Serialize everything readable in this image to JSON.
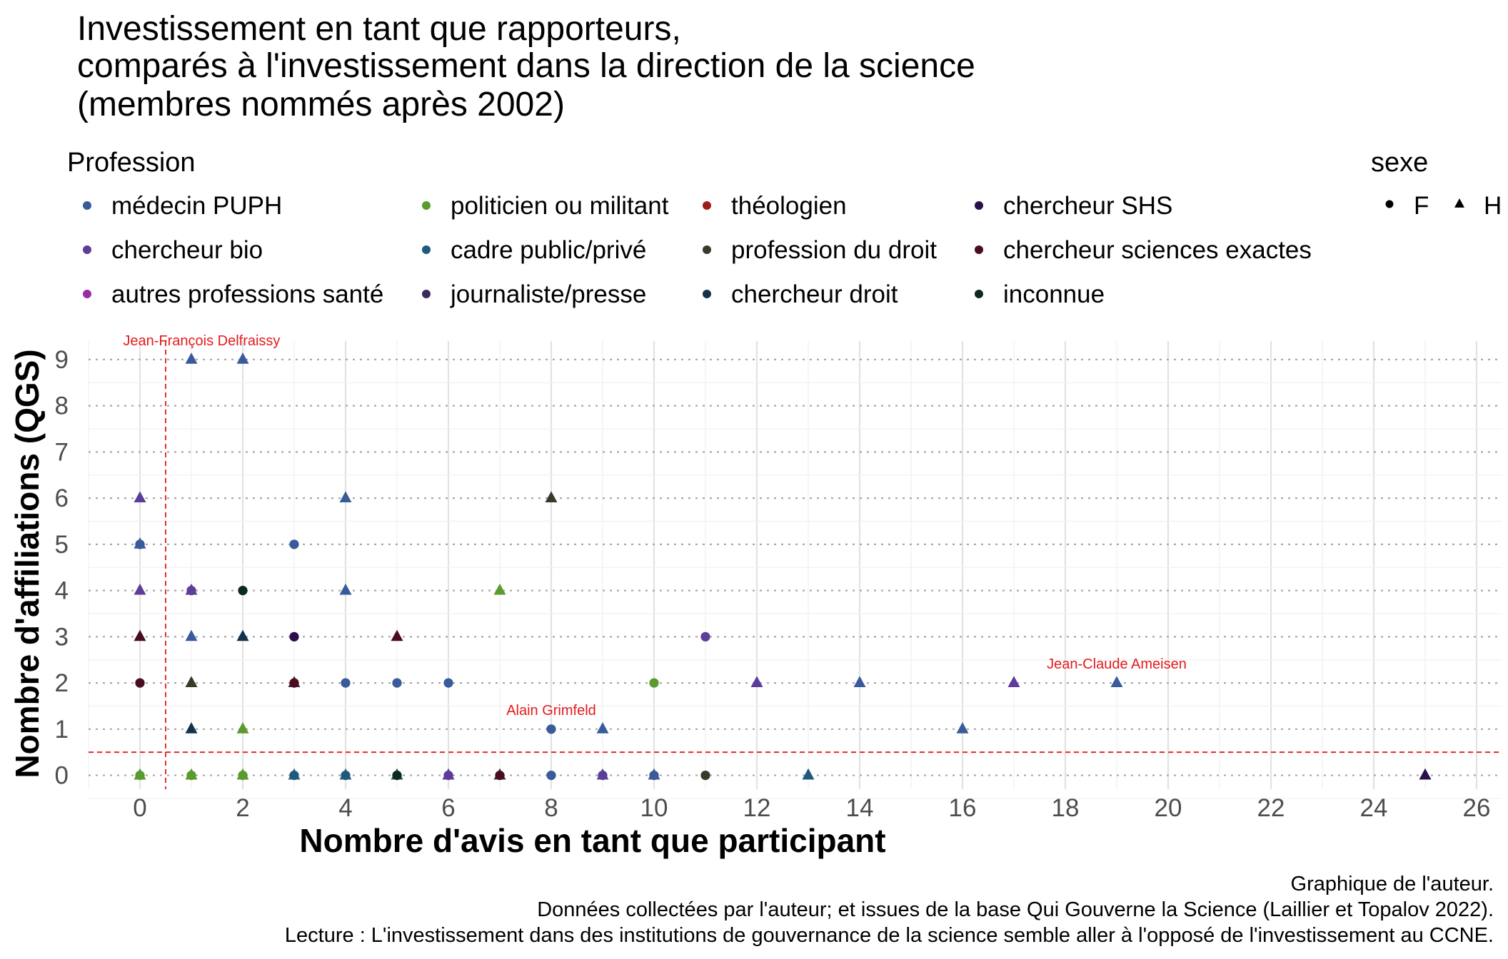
{
  "chart_data": {
    "type": "scatter",
    "title_lines": [
      "Investissement en tant que rapporteurs,",
      "comparés à l'investissement dans la direction de la science",
      "(membres nommés après 2002)"
    ],
    "xlabel": "Nombre d'avis en tant que participant",
    "ylabel": "Nombre d'affiliations (QGS)",
    "xlim": [
      -1,
      26.5
    ],
    "ylim": [
      -0.3,
      9.4
    ],
    "x_ticks": [
      0,
      2,
      4,
      6,
      8,
      10,
      12,
      14,
      16,
      18,
      20,
      22,
      24,
      26
    ],
    "y_ticks": [
      0,
      1,
      2,
      3,
      4,
      5,
      6,
      7,
      8,
      9
    ],
    "grid": true,
    "legend_position": "top",
    "reference_lines": {
      "vertical_x": 0.5,
      "horizontal_y": 0.5,
      "color": "#e41a1c"
    },
    "legend_profession": {
      "title": "Profession",
      "items": [
        {
          "label": "médecin PUPH",
          "color": "#3a5b9a"
        },
        {
          "label": "chercheur bio",
          "color": "#5e3c99"
        },
        {
          "label": "autres professions santé",
          "color": "#9b2aa8"
        },
        {
          "label": "politicien ou militant",
          "color": "#5a9a2e"
        },
        {
          "label": "cadre public/privé",
          "color": "#1e5a7a"
        },
        {
          "label": "journaliste/presse",
          "color": "#3b2a5a"
        },
        {
          "label": "théologien",
          "color": "#9e1c1c"
        },
        {
          "label": "profession du droit",
          "color": "#3a3a2a"
        },
        {
          "label": "chercheur droit",
          "color": "#13334a"
        },
        {
          "label": "chercheur SHS",
          "color": "#2a0f4a"
        },
        {
          "label": "chercheur sciences exactes",
          "color": "#4a0d1e"
        },
        {
          "label": "inconnue",
          "color": "#0d2a1e"
        }
      ]
    },
    "legend_sexe": {
      "title": "sexe",
      "items": [
        {
          "label": "F",
          "shape": "circle"
        },
        {
          "label": "H",
          "shape": "triangle"
        }
      ]
    },
    "annotations": [
      {
        "text": "Jean-François Delfraissy",
        "x": 1.2,
        "y": 9
      },
      {
        "text": "Alain Grimfeld",
        "x": 8.0,
        "y": 1
      },
      {
        "text": "Jean-Claude Ameisen",
        "x": 19.0,
        "y": 2
      }
    ],
    "points": [
      {
        "x": 1,
        "y": 9,
        "profession": "médecin PUPH",
        "sexe": "H"
      },
      {
        "x": 2,
        "y": 9,
        "profession": "médecin PUPH",
        "sexe": "H"
      },
      {
        "x": 0,
        "y": 6,
        "profession": "chercheur bio",
        "sexe": "H"
      },
      {
        "x": 4,
        "y": 6,
        "profession": "médecin PUPH",
        "sexe": "H"
      },
      {
        "x": 8,
        "y": 6,
        "profession": "profession du droit",
        "sexe": "H"
      },
      {
        "x": 0,
        "y": 5,
        "profession": "médecin PUPH",
        "sexe": "H"
      },
      {
        "x": 0,
        "y": 5,
        "profession": "médecin PUPH",
        "sexe": "F"
      },
      {
        "x": 3,
        "y": 5,
        "profession": "médecin PUPH",
        "sexe": "F"
      },
      {
        "x": 0,
        "y": 4,
        "profession": "chercheur bio",
        "sexe": "H"
      },
      {
        "x": 1,
        "y": 4,
        "profession": "chercheur bio",
        "sexe": "H"
      },
      {
        "x": 1,
        "y": 4,
        "profession": "chercheur bio",
        "sexe": "F"
      },
      {
        "x": 2,
        "y": 4,
        "profession": "inconnue",
        "sexe": "F"
      },
      {
        "x": 4,
        "y": 4,
        "profession": "médecin PUPH",
        "sexe": "H"
      },
      {
        "x": 7,
        "y": 4,
        "profession": "politicien ou militant",
        "sexe": "H"
      },
      {
        "x": 0,
        "y": 3,
        "profession": "chercheur sciences exactes",
        "sexe": "H"
      },
      {
        "x": 1,
        "y": 3,
        "profession": "médecin PUPH",
        "sexe": "H"
      },
      {
        "x": 2,
        "y": 3,
        "profession": "chercheur droit",
        "sexe": "H"
      },
      {
        "x": 3,
        "y": 3,
        "profession": "chercheur SHS",
        "sexe": "F"
      },
      {
        "x": 5,
        "y": 3,
        "profession": "chercheur sciences exactes",
        "sexe": "H"
      },
      {
        "x": 11,
        "y": 3,
        "profession": "chercheur bio",
        "sexe": "F"
      },
      {
        "x": 0,
        "y": 2,
        "profession": "chercheur sciences exactes",
        "sexe": "F"
      },
      {
        "x": 1,
        "y": 2,
        "profession": "profession du droit",
        "sexe": "H"
      },
      {
        "x": 3,
        "y": 2,
        "profession": "journaliste/presse",
        "sexe": "H"
      },
      {
        "x": 3,
        "y": 2,
        "profession": "chercheur sciences exactes",
        "sexe": "F"
      },
      {
        "x": 4,
        "y": 2,
        "profession": "médecin PUPH",
        "sexe": "F"
      },
      {
        "x": 5,
        "y": 2,
        "profession": "médecin PUPH",
        "sexe": "F"
      },
      {
        "x": 6,
        "y": 2,
        "profession": "médecin PUPH",
        "sexe": "F"
      },
      {
        "x": 10,
        "y": 2,
        "profession": "politicien ou militant",
        "sexe": "F"
      },
      {
        "x": 12,
        "y": 2,
        "profession": "chercheur bio",
        "sexe": "H"
      },
      {
        "x": 14,
        "y": 2,
        "profession": "médecin PUPH",
        "sexe": "H"
      },
      {
        "x": 17,
        "y": 2,
        "profession": "chercheur bio",
        "sexe": "H"
      },
      {
        "x": 19,
        "y": 2,
        "profession": "médecin PUPH",
        "sexe": "H"
      },
      {
        "x": 1,
        "y": 1,
        "profession": "chercheur droit",
        "sexe": "H"
      },
      {
        "x": 2,
        "y": 1,
        "profession": "politicien ou militant",
        "sexe": "H"
      },
      {
        "x": 8,
        "y": 1,
        "profession": "médecin PUPH",
        "sexe": "F"
      },
      {
        "x": 9,
        "y": 1,
        "profession": "médecin PUPH",
        "sexe": "H"
      },
      {
        "x": 16,
        "y": 1,
        "profession": "médecin PUPH",
        "sexe": "H"
      },
      {
        "x": 0,
        "y": 0,
        "profession": "politicien ou militant",
        "sexe": "H"
      },
      {
        "x": 0,
        "y": 0,
        "profession": "politicien ou militant",
        "sexe": "F"
      },
      {
        "x": 1,
        "y": 0,
        "profession": "politicien ou militant",
        "sexe": "H"
      },
      {
        "x": 1,
        "y": 0,
        "profession": "politicien ou militant",
        "sexe": "F"
      },
      {
        "x": 2,
        "y": 0,
        "profession": "politicien ou militant",
        "sexe": "H"
      },
      {
        "x": 2,
        "y": 0,
        "profession": "politicien ou militant",
        "sexe": "F"
      },
      {
        "x": 3,
        "y": 0,
        "profession": "médecin PUPH",
        "sexe": "H"
      },
      {
        "x": 3,
        "y": 0,
        "profession": "cadre public/privé",
        "sexe": "F"
      },
      {
        "x": 4,
        "y": 0,
        "profession": "médecin PUPH",
        "sexe": "H"
      },
      {
        "x": 4,
        "y": 0,
        "profession": "cadre public/privé",
        "sexe": "F"
      },
      {
        "x": 5,
        "y": 0,
        "profession": "cadre public/privé",
        "sexe": "H"
      },
      {
        "x": 5,
        "y": 0,
        "profession": "inconnue",
        "sexe": "F"
      },
      {
        "x": 6,
        "y": 0,
        "profession": "chercheur bio",
        "sexe": "H"
      },
      {
        "x": 6,
        "y": 0,
        "profession": "chercheur bio",
        "sexe": "F"
      },
      {
        "x": 7,
        "y": 0,
        "profession": "journaliste/presse",
        "sexe": "H"
      },
      {
        "x": 7,
        "y": 0,
        "profession": "chercheur sciences exactes",
        "sexe": "F"
      },
      {
        "x": 8,
        "y": 0,
        "profession": "médecin PUPH",
        "sexe": "F"
      },
      {
        "x": 9,
        "y": 0,
        "profession": "médecin PUPH",
        "sexe": "H"
      },
      {
        "x": 9,
        "y": 0,
        "profession": "chercheur bio",
        "sexe": "F"
      },
      {
        "x": 10,
        "y": 0,
        "profession": "médecin PUPH",
        "sexe": "H"
      },
      {
        "x": 10,
        "y": 0,
        "profession": "médecin PUPH",
        "sexe": "F"
      },
      {
        "x": 11,
        "y": 0,
        "profession": "profession du droit",
        "sexe": "F"
      },
      {
        "x": 13,
        "y": 0,
        "profession": "cadre public/privé",
        "sexe": "H"
      },
      {
        "x": 25,
        "y": 0,
        "profession": "chercheur SHS",
        "sexe": "H"
      }
    ]
  },
  "caption_lines": [
    "Graphique de l'auteur.",
    "Données collectées par l'auteur; et issues de la base Qui Gouverne la Science (Laillier et Topalov 2022).",
    "Lecture : L'investissement dans des institutions de gouvernance de la science semble aller à l'opposé de l'investissement au CCNE."
  ]
}
